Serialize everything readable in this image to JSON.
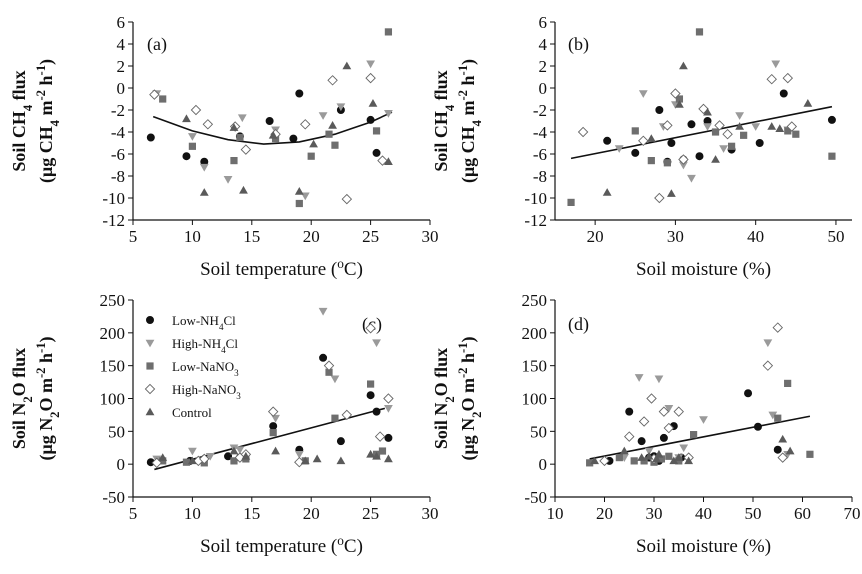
{
  "chart_data": [
    {
      "panel": "(a)",
      "type": "scatter",
      "xlabel": "Soil temperature (°C)",
      "ylabel_line1": "Soil CH4 flux",
      "ylabel_line2": "(μg CH4  m⁻² h⁻¹)",
      "xlim": [
        5,
        30
      ],
      "ylim": [
        -12,
        6
      ],
      "xticks": [
        5,
        10,
        15,
        20,
        25,
        30
      ],
      "yticks": [
        -12,
        -10,
        -8,
        -6,
        -4,
        -2,
        0,
        2,
        4,
        6
      ],
      "fit": {
        "type": "quadratic",
        "points": [
          [
            6.7,
            -2.6
          ],
          [
            10,
            -3.9
          ],
          [
            13,
            -4.7
          ],
          [
            16,
            -5.1
          ],
          [
            19,
            -4.9
          ],
          [
            22,
            -4.2
          ],
          [
            25,
            -3.1
          ],
          [
            26.8,
            -2.2
          ]
        ]
      },
      "series": [
        {
          "name": "Low-NH4Cl",
          "marker": "circle",
          "x": [
            6.5,
            9.5,
            11,
            14,
            16.5,
            18.5,
            19,
            22.5,
            25,
            25.5
          ],
          "y": [
            -4.5,
            -6.2,
            -6.7,
            -4.4,
            -3,
            -4.6,
            -0.5,
            -2,
            -2.9,
            -5.9
          ]
        },
        {
          "name": "High-NH4Cl",
          "marker": "triangle-down",
          "x": [
            7,
            10,
            11,
            13,
            14.2,
            17,
            19.5,
            21,
            22.5,
            25,
            26.5
          ],
          "y": [
            -0.5,
            -4.4,
            -7.2,
            -8.3,
            -2.7,
            -3.8,
            -9.8,
            -2.5,
            -1.7,
            2.2,
            -2.3
          ]
        },
        {
          "name": "Low-NaNO3",
          "marker": "square",
          "x": [
            7.5,
            10,
            13.5,
            14,
            17,
            19,
            20,
            21.5,
            22,
            25.5,
            26.5
          ],
          "y": [
            -1,
            -5.3,
            -6.6,
            -4.5,
            -4.6,
            -10.5,
            -6.2,
            -4.2,
            -5.2,
            -3.9,
            5.1
          ]
        },
        {
          "name": "High-NaNO3",
          "marker": "diamond",
          "x": [
            6.8,
            10.3,
            11.3,
            13.6,
            14.5,
            17,
            19.5,
            21.8,
            23,
            25,
            26
          ],
          "y": [
            -0.6,
            -2,
            -3.3,
            -3.5,
            -5.6,
            -4.2,
            -3.3,
            0.7,
            -10.1,
            0.9,
            -6.6
          ]
        },
        {
          "name": "Control",
          "marker": "triangle-up",
          "x": [
            9.5,
            11,
            13.5,
            14.3,
            16.8,
            19,
            20.2,
            21.8,
            23,
            25.2,
            26.5
          ],
          "y": [
            -2.8,
            -9.5,
            -3.6,
            -9.3,
            -4.3,
            -9.4,
            -5.1,
            -3.4,
            2,
            -1.4,
            -6.7
          ]
        }
      ]
    },
    {
      "panel": "(b)",
      "type": "scatter",
      "xlabel": "Soil moisture (%)",
      "ylabel_line1": "Soil CH4 flux",
      "ylabel_line2": "(μg CH4  m⁻² h⁻¹)",
      "xlim": [
        15,
        52
      ],
      "ylim": [
        -12,
        6
      ],
      "xticks": [
        20,
        30,
        40,
        50
      ],
      "yticks": [
        -12,
        -10,
        -8,
        -6,
        -4,
        -2,
        0,
        2,
        4,
        6
      ],
      "fit": {
        "type": "linear",
        "points": [
          [
            17,
            -6.4
          ],
          [
            49.5,
            -1.7
          ]
        ]
      },
      "series": [
        {
          "name": "Low-NH4Cl",
          "marker": "circle",
          "x": [
            21.5,
            25,
            28,
            29,
            29.5,
            31,
            32,
            33,
            34,
            37,
            40.5,
            43.5,
            49.5
          ],
          "y": [
            -4.8,
            -5.9,
            -2,
            -6.7,
            -5,
            -6.5,
            -3.3,
            -6.2,
            -3,
            -5.6,
            -5,
            -0.5,
            -2.9
          ]
        },
        {
          "name": "High-NH4Cl",
          "marker": "triangle-down",
          "x": [
            23,
            26,
            28.5,
            30,
            31,
            32,
            34,
            36,
            38,
            40,
            42.5,
            44
          ],
          "y": [
            -5.5,
            -0.5,
            -3.5,
            -1.5,
            -7,
            -8.2,
            -3.5,
            -5.5,
            -2.5,
            -3.5,
            2.2,
            -3.8
          ]
        },
        {
          "name": "Low-NaNO3",
          "marker": "square",
          "x": [
            17,
            25,
            27,
            29,
            30.5,
            33,
            35,
            37,
            38.5,
            44,
            45,
            49.5
          ],
          "y": [
            -10.4,
            -3.9,
            -6.6,
            -6.8,
            -1,
            5.1,
            -4,
            -5.3,
            -4.3,
            -3.9,
            -4.2,
            -6.2
          ]
        },
        {
          "name": "High-NaNO3",
          "marker": "diamond",
          "x": [
            18.5,
            26,
            28,
            29,
            30,
            31,
            33.5,
            35.5,
            36.5,
            42,
            44,
            44.5
          ],
          "y": [
            -4,
            -4.8,
            -10,
            -3.4,
            -0.5,
            -6.5,
            -1.9,
            -3.4,
            -4.2,
            0.8,
            0.9,
            -3.5
          ]
        },
        {
          "name": "Control",
          "marker": "triangle-up",
          "x": [
            21.5,
            27,
            29.5,
            30.5,
            31,
            34,
            35,
            38,
            42,
            43,
            46.5
          ],
          "y": [
            -9.5,
            -4.6,
            -9.6,
            -1.5,
            2,
            -2.2,
            -6.5,
            -3.5,
            -3.5,
            -3.7,
            -1.4
          ]
        }
      ]
    },
    {
      "panel": "(c)",
      "type": "scatter",
      "xlabel": "Soil temperature (°C)",
      "ylabel_line1": "Soil N2O flux",
      "ylabel_line2": "(μg N2O m⁻² h⁻¹)",
      "xlim": [
        5,
        30
      ],
      "ylim": [
        -50,
        250
      ],
      "xticks": [
        5,
        10,
        15,
        20,
        25,
        30
      ],
      "yticks": [
        -50,
        0,
        50,
        100,
        150,
        200,
        250
      ],
      "legend": [
        "Low-NH4Cl",
        "High-NH4Cl",
        "Low-NaNO3",
        "High-NaNO3",
        "Control"
      ],
      "fit": {
        "type": "linear",
        "points": [
          [
            6.8,
            -8
          ],
          [
            26.2,
            85
          ]
        ]
      },
      "series": [
        {
          "name": "Low-NH4Cl",
          "marker": "circle",
          "x": [
            6.5,
            9.8,
            11,
            13,
            14,
            16.8,
            19,
            21,
            22.5,
            25,
            25.5,
            26.5
          ],
          "y": [
            3,
            5,
            8,
            12,
            10,
            58,
            22,
            162,
            35,
            105,
            80,
            40
          ]
        },
        {
          "name": "High-NH4Cl",
          "marker": "triangle-down",
          "x": [
            7,
            10,
            11.5,
            13.5,
            14,
            17,
            19,
            21,
            22,
            25.5,
            26.5
          ],
          "y": [
            8,
            20,
            12,
            25,
            22,
            70,
            15,
            233,
            130,
            185,
            85
          ]
        },
        {
          "name": "Low-NaNO3",
          "marker": "square",
          "x": [
            7.5,
            9.5,
            11,
            13.5,
            14.5,
            16.8,
            19.5,
            21.5,
            22,
            25,
            25.5,
            26
          ],
          "y": [
            5,
            3,
            2,
            5,
            8,
            48,
            5,
            140,
            70,
            122,
            15,
            20
          ]
        },
        {
          "name": "High-NaNO3",
          "marker": "diamond",
          "x": [
            7,
            10.5,
            11,
            14,
            14.5,
            16.8,
            19,
            21.5,
            23,
            25,
            25.8,
            26.5
          ],
          "y": [
            2,
            5,
            8,
            10,
            15,
            80,
            3,
            150,
            75,
            207,
            42,
            100
          ]
        },
        {
          "name": "Control",
          "marker": "triangle-up",
          "x": [
            7.5,
            10,
            13.5,
            14.5,
            17,
            19.5,
            20.5,
            22.5,
            25,
            25.5,
            26.5
          ],
          "y": [
            10,
            5,
            20,
            12,
            20,
            5,
            8,
            5,
            15,
            12,
            8
          ]
        }
      ]
    },
    {
      "panel": "(d)",
      "type": "scatter",
      "xlabel": "Soil moisture (%)",
      "ylabel_line1": "Soil N2O flux",
      "ylabel_line2": "(μg N2O m⁻² h⁻¹)",
      "xlim": [
        10,
        70
      ],
      "ylim": [
        -50,
        250
      ],
      "xticks": [
        10,
        20,
        30,
        40,
        50,
        60,
        70
      ],
      "yticks": [
        -50,
        0,
        50,
        100,
        150,
        200,
        250
      ],
      "fit": {
        "type": "linear",
        "points": [
          [
            17,
            8
          ],
          [
            61.5,
            73
          ]
        ]
      },
      "series": [
        {
          "name": "Low-NH4Cl",
          "marker": "circle",
          "x": [
            21,
            25,
            27.5,
            29,
            30,
            31,
            32,
            34,
            35.5,
            49,
            51,
            55
          ],
          "y": [
            5,
            80,
            35,
            10,
            12,
            5,
            40,
            58,
            10,
            108,
            57,
            22
          ]
        },
        {
          "name": "High-NH4Cl",
          "marker": "triangle-down",
          "x": [
            24,
            27,
            29,
            31,
            33,
            35,
            36,
            40,
            53,
            54,
            57
          ],
          "y": [
            10,
            132,
            20,
            130,
            85,
            10,
            25,
            68,
            185,
            75,
            15
          ]
        },
        {
          "name": "Low-NaNO3",
          "marker": "square",
          "x": [
            17,
            23,
            26,
            28,
            30,
            31.5,
            33,
            35,
            38,
            55,
            57,
            61.5
          ],
          "y": [
            2,
            10,
            5,
            5,
            3,
            8,
            12,
            5,
            45,
            70,
            123,
            15
          ]
        },
        {
          "name": "High-NaNO3",
          "marker": "diamond",
          "x": [
            20,
            25,
            28,
            29.5,
            30,
            32,
            33,
            35,
            37,
            53,
            55,
            56
          ],
          "y": [
            5,
            42,
            65,
            100,
            8,
            80,
            55,
            80,
            10,
            150,
            208,
            10
          ]
        },
        {
          "name": "Control",
          "marker": "triangle-up",
          "x": [
            18,
            24,
            27.5,
            29,
            30.5,
            31,
            34,
            35,
            37,
            56,
            57.5
          ],
          "y": [
            5,
            20,
            10,
            12,
            8,
            15,
            5,
            10,
            5,
            38,
            20
          ]
        }
      ]
    }
  ]
}
